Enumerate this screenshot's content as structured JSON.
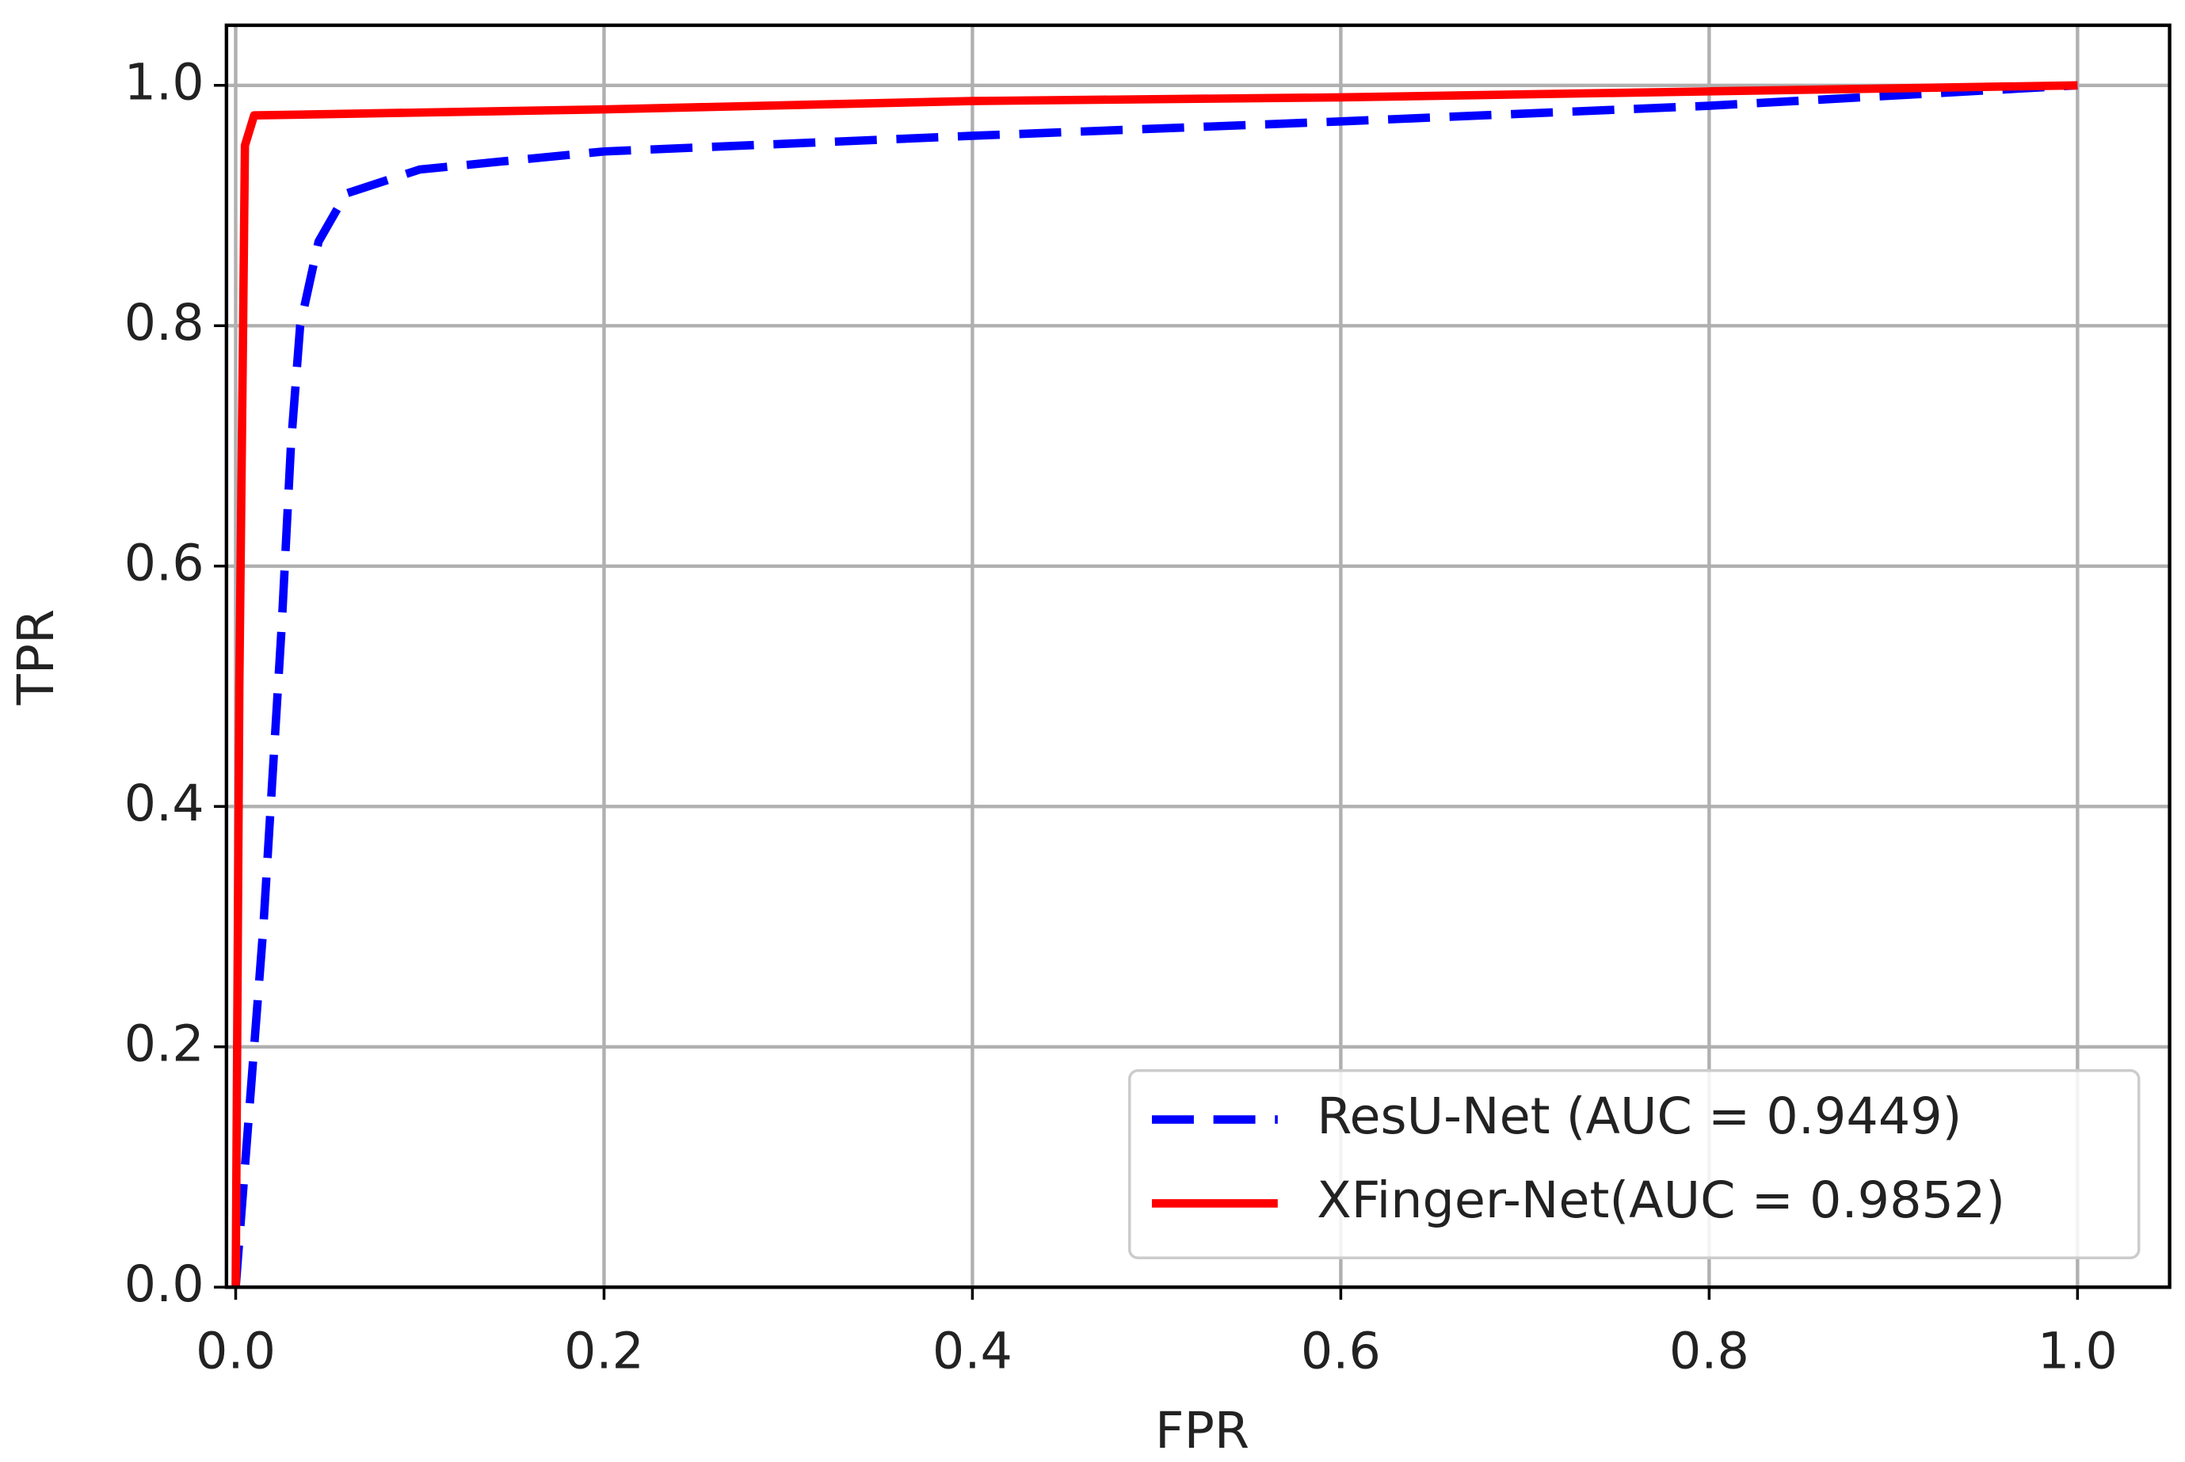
{
  "chart_data": {
    "type": "line",
    "xlabel": "FPR",
    "ylabel": "TPR",
    "xlim": [
      -0.005,
      1.05
    ],
    "ylim": [
      0,
      1.05
    ],
    "xticks": [
      {
        "value": 0,
        "label": "0.0"
      },
      {
        "value": 0.2,
        "label": "0.2"
      },
      {
        "value": 0.4,
        "label": "0.4"
      },
      {
        "value": 0.6,
        "label": "0.6"
      },
      {
        "value": 0.8,
        "label": "0.8"
      },
      {
        "value": 1,
        "label": "1.0"
      }
    ],
    "yticks": [
      {
        "value": 0,
        "label": "0.0"
      },
      {
        "value": 0.2,
        "label": "0.2"
      },
      {
        "value": 0.4,
        "label": "0.4"
      },
      {
        "value": 0.6,
        "label": "0.6"
      },
      {
        "value": 0.8,
        "label": "0.8"
      },
      {
        "value": 1,
        "label": "1.0"
      }
    ],
    "grid": true,
    "legend": "lower right",
    "series": [
      {
        "name": "ResU-Net (AUC = 0.9449)",
        "color": "#0000ff",
        "dashed": true,
        "x": [
          0,
          0.005,
          0.015,
          0.025,
          0.03,
          0.035,
          0.045,
          0.06,
          0.1,
          0.2,
          0.4,
          0.6,
          0.8,
          1.0
        ],
        "values": [
          0,
          0.1,
          0.3,
          0.55,
          0.7,
          0.8,
          0.87,
          0.91,
          0.93,
          0.945,
          0.958,
          0.97,
          0.983,
          1.0
        ]
      },
      {
        "name": "XFinger-Net(AUC = 0.9852)",
        "color": "#ff0000",
        "dashed": false,
        "x": [
          0,
          0.002,
          0.004,
          0.005,
          0.01,
          0.2,
          0.4,
          0.6,
          0.8,
          1.0
        ],
        "values": [
          0,
          0.5,
          0.8,
          0.95,
          0.975,
          0.98,
          0.987,
          0.99,
          0.995,
          1.0
        ]
      }
    ]
  }
}
